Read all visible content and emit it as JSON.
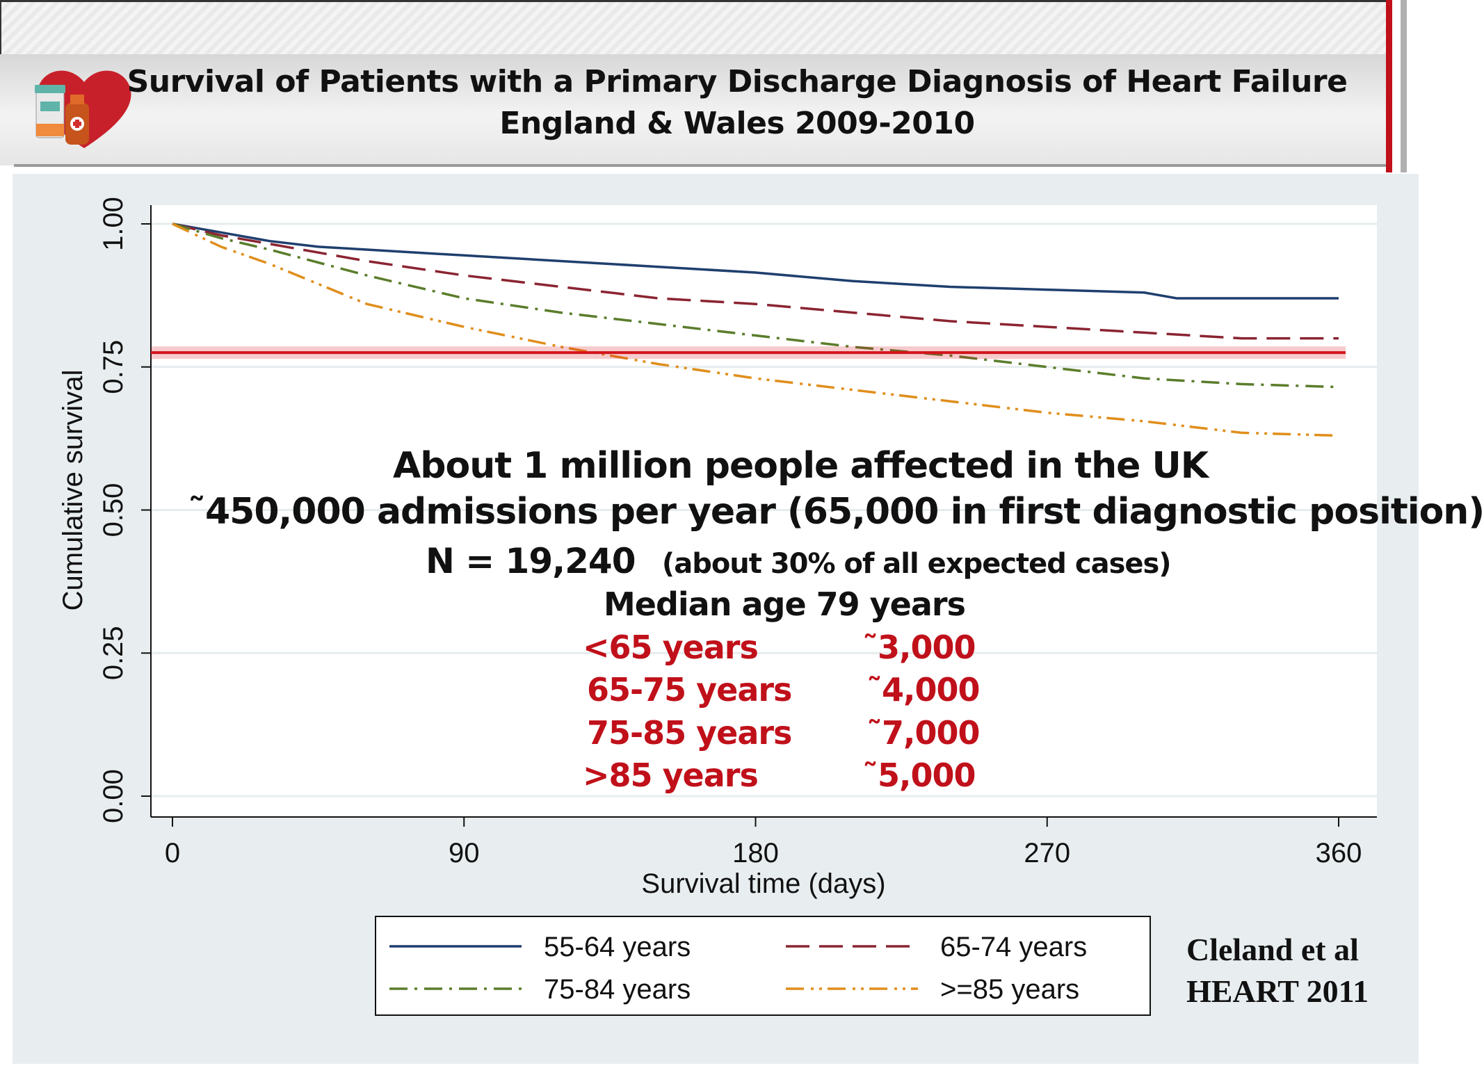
{
  "title": {
    "line1": "Survival of Patients with a Primary Discharge Diagnosis of Heart Failure",
    "line2": "England & Wales 2009-2010"
  },
  "logo_icon": "heart-medicine-icon",
  "colors": {
    "series_55_64": "#1f3f6e",
    "series_65_74": "#8b2431",
    "series_75_84": "#5a7d2b",
    "series_85_plus": "#e08e1b",
    "highlight_line": "#d4141c",
    "accent": "#c0101a"
  },
  "chart_data": {
    "type": "line",
    "xlabel": "Survival time (days)",
    "ylabel": "Cumulative survival",
    "xlim": [
      0,
      360
    ],
    "ylim": [
      0,
      1
    ],
    "x_ticks": [
      "0",
      "90",
      "180",
      "270",
      "360"
    ],
    "y_ticks": [
      "0.00",
      "0.25",
      "0.50",
      "0.75",
      "1.00"
    ],
    "grid": true,
    "legend_placement": "bottom",
    "reference_line": {
      "y": 0.775
    },
    "series": [
      {
        "name": "55-64 years",
        "style": "solid",
        "x": [
          0,
          15,
          30,
          45,
          60,
          90,
          120,
          150,
          180,
          210,
          240,
          270,
          300,
          310,
          360
        ],
        "y": [
          1.0,
          0.985,
          0.97,
          0.96,
          0.955,
          0.945,
          0.935,
          0.925,
          0.915,
          0.9,
          0.89,
          0.885,
          0.88,
          0.87,
          0.87
        ]
      },
      {
        "name": "65-74 years",
        "style": "dash",
        "x": [
          0,
          15,
          30,
          60,
          90,
          120,
          150,
          180,
          210,
          240,
          270,
          300,
          330,
          360
        ],
        "y": [
          1.0,
          0.98,
          0.965,
          0.935,
          0.91,
          0.89,
          0.87,
          0.86,
          0.845,
          0.83,
          0.82,
          0.81,
          0.8,
          0.8
        ]
      },
      {
        "name": "75-84 years",
        "style": "dashdot",
        "x": [
          0,
          15,
          30,
          60,
          90,
          120,
          150,
          180,
          210,
          240,
          270,
          300,
          330,
          360
        ],
        "y": [
          1.0,
          0.975,
          0.955,
          0.91,
          0.87,
          0.845,
          0.825,
          0.805,
          0.785,
          0.77,
          0.75,
          0.73,
          0.72,
          0.715
        ]
      },
      {
        "name": ">=85 years",
        "style": "dashdotdot",
        "x": [
          0,
          15,
          30,
          60,
          90,
          120,
          150,
          180,
          210,
          240,
          270,
          300,
          330,
          360
        ],
        "y": [
          1.0,
          0.96,
          0.93,
          0.86,
          0.82,
          0.785,
          0.755,
          0.73,
          0.71,
          0.69,
          0.67,
          0.655,
          0.635,
          0.63
        ]
      }
    ]
  },
  "annotations": {
    "line1": "About 1 million people affected in the UK",
    "line2": "˜450,000 admissions per year (65,000 in first diagnostic position)",
    "line3_main": "N = 19,240",
    "line3_note": "(about 30% of all expected cases)",
    "line4": "Median age 79 years",
    "age_groups": [
      {
        "label": "<65 years",
        "count": "˜3,000"
      },
      {
        "label": "65-75 years",
        "count": "˜4,000"
      },
      {
        "label": "75-85 years",
        "count": "˜7,000"
      },
      {
        "label": ">85 years",
        "count": "˜5,000"
      }
    ]
  },
  "citation": {
    "line1": "Cleland et al",
    "line2": "HEART 2011"
  }
}
